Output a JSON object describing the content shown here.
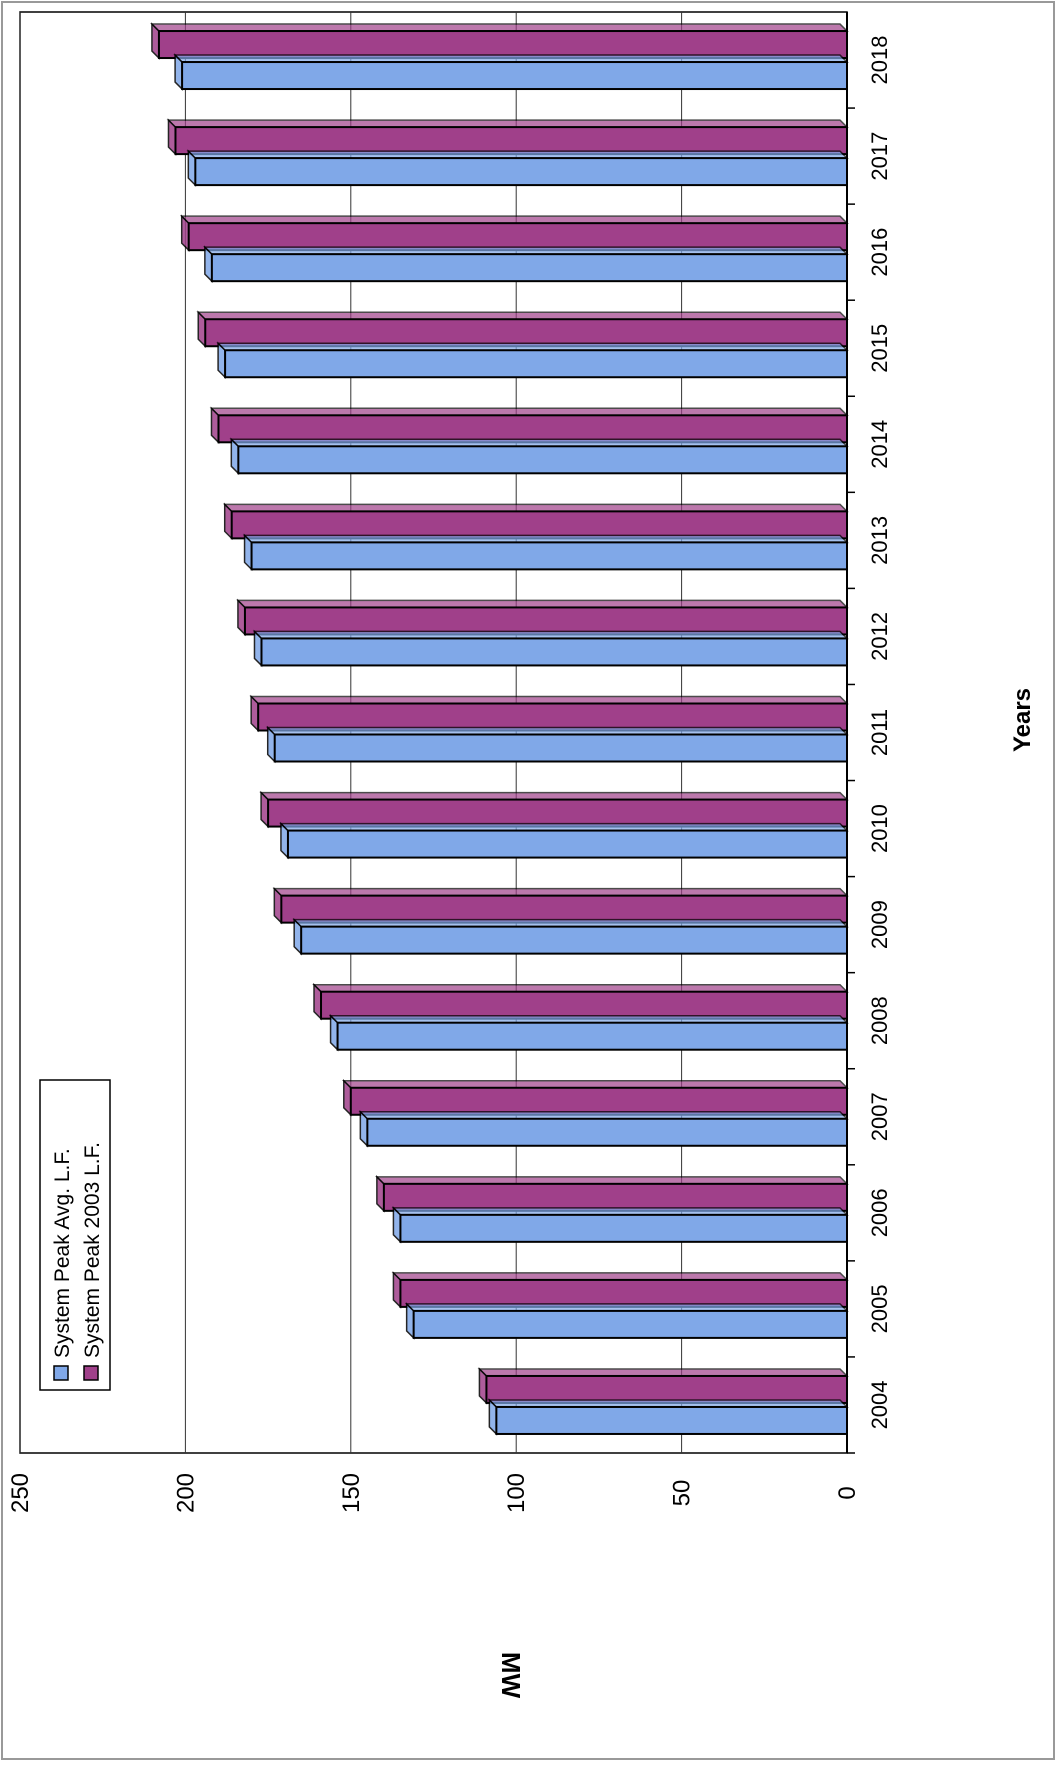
{
  "chart_data": {
    "type": "bar",
    "orientation": "horizontal-rotated",
    "title": "",
    "xlabel": "Years",
    "ylabel": "MW",
    "categories": [
      "2004",
      "2005",
      "2006",
      "2007",
      "2008",
      "2009",
      "2010",
      "2011",
      "2012",
      "2013",
      "2014",
      "2015",
      "2016",
      "2017",
      "2018"
    ],
    "series": [
      {
        "name": "System Peak Avg. L.F.",
        "color": "#80a8e8",
        "values": [
          106,
          131,
          135,
          145,
          154,
          165,
          169,
          173,
          177,
          180,
          184,
          188,
          192,
          197,
          201
        ]
      },
      {
        "name": "System Peak 2003 L.F.",
        "color": "#a0408a",
        "values": [
          109,
          135,
          140,
          150,
          159,
          171,
          175,
          178,
          182,
          186,
          190,
          194,
          199,
          203,
          208
        ]
      }
    ],
    "ylim": [
      0,
      250
    ],
    "yticks": [
      0,
      50,
      100,
      150,
      200,
      250
    ],
    "grid": true,
    "legend_position": "bottom-left (rotated)"
  }
}
